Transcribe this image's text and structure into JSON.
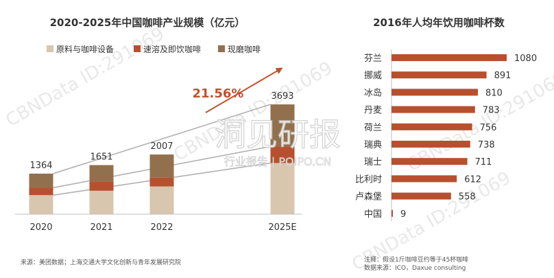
{
  "colors": {
    "raw": "#d8c6ae",
    "instant": "#b6502f",
    "ground": "#93704d",
    "arrow": "#c0522c",
    "trend_line": "#b0b0b0",
    "text": "#333333",
    "watermark": "#d9d9d9"
  },
  "left_chart": {
    "title": "2020-2025年中国咖啡产业规模（亿元）",
    "growth_label": "21.56%"
  },
  "right_chart": {
    "title": "2016年人均年饮用咖啡杯数"
  },
  "footnotes": {
    "source_left": "来源：美团数据；上海交通大学文化创新与青年发展研究院",
    "note_right": "注释：假设1斤咖啡豆约等于45杯咖啡",
    "source_right": "数据来源：ICO，Daxue consulting"
  },
  "watermark": {
    "main": "CBNData ID:291069",
    "brand": "洞见研报",
    "brand_sub": "行业报告 | POIPO.CN"
  },
  "chart_data": [
    {
      "type": "bar",
      "stacked": true,
      "title": "2020-2025年中国咖啡产业规模（亿元）",
      "categories": [
        "2020",
        "2021",
        "2022",
        "2025E"
      ],
      "totals": [
        1364,
        1651,
        2007,
        3693
      ],
      "series": [
        {
          "name": "原料与咖啡设备",
          "values": [
            640,
            788,
            933,
            1721
          ]
        },
        {
          "name": "速溶及即饮咖啡",
          "values": [
            250,
            307,
            297,
            555
          ]
        },
        {
          "name": "现磨咖啡",
          "values": [
            474,
            556,
            777,
            1417
          ]
        }
      ],
      "annotation": "21.56%",
      "grid": false
    },
    {
      "type": "bar",
      "orientation": "horizontal",
      "title": "2016年人均年饮用咖啡杯数",
      "categories": [
        "芬兰",
        "挪威",
        "冰岛",
        "丹麦",
        "荷兰",
        "瑞典",
        "瑞士",
        "比利时",
        "卢森堡",
        "中国"
      ],
      "values": [
        1080,
        891,
        810,
        783,
        756,
        738,
        711,
        612,
        558,
        9
      ],
      "xlim": [
        0,
        1080
      ],
      "grid": false
    }
  ]
}
